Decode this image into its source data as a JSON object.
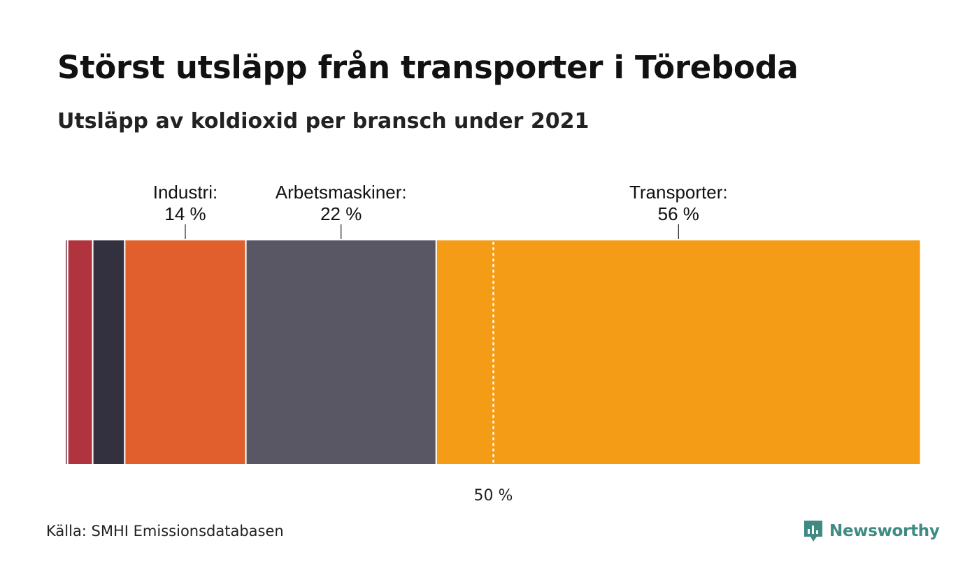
{
  "title": "Störst utsläpp från transporter i Töreboda",
  "subtitle": "Utsläpp av koldioxid per bransch under 2021",
  "source": "Källa: SMHI Emissionsdatabasen",
  "brand": {
    "name": "Newsworthy",
    "color": "#3f8a83",
    "icon": "newsworthy-logo-icon"
  },
  "chart_data": {
    "type": "bar",
    "orientation": "horizontal-stacked-100",
    "unit": "%",
    "segments": [
      {
        "value": 0.3,
        "color": "#7a3d4e"
      },
      {
        "value": 2.9,
        "color": "#b0343d"
      },
      {
        "value": 3.7,
        "color": "#33313f"
      },
      {
        "value": 14,
        "color": "#e05f2c",
        "label": "Industri:",
        "value_label": "14 %"
      },
      {
        "value": 22,
        "color": "#5a5765",
        "label": "Arbetsmaskiner:",
        "value_label": "22 %"
      },
      {
        "value": 56,
        "color": "#f59c17",
        "label": "Transporter:",
        "value_label": "56 %"
      },
      {
        "value": 0.1,
        "color": "#f4c07a"
      }
    ],
    "reference_line": {
      "value": 50,
      "label": "50 %",
      "style": "dotted",
      "color": "#ffffff"
    },
    "xlim": [
      0,
      100
    ]
  }
}
